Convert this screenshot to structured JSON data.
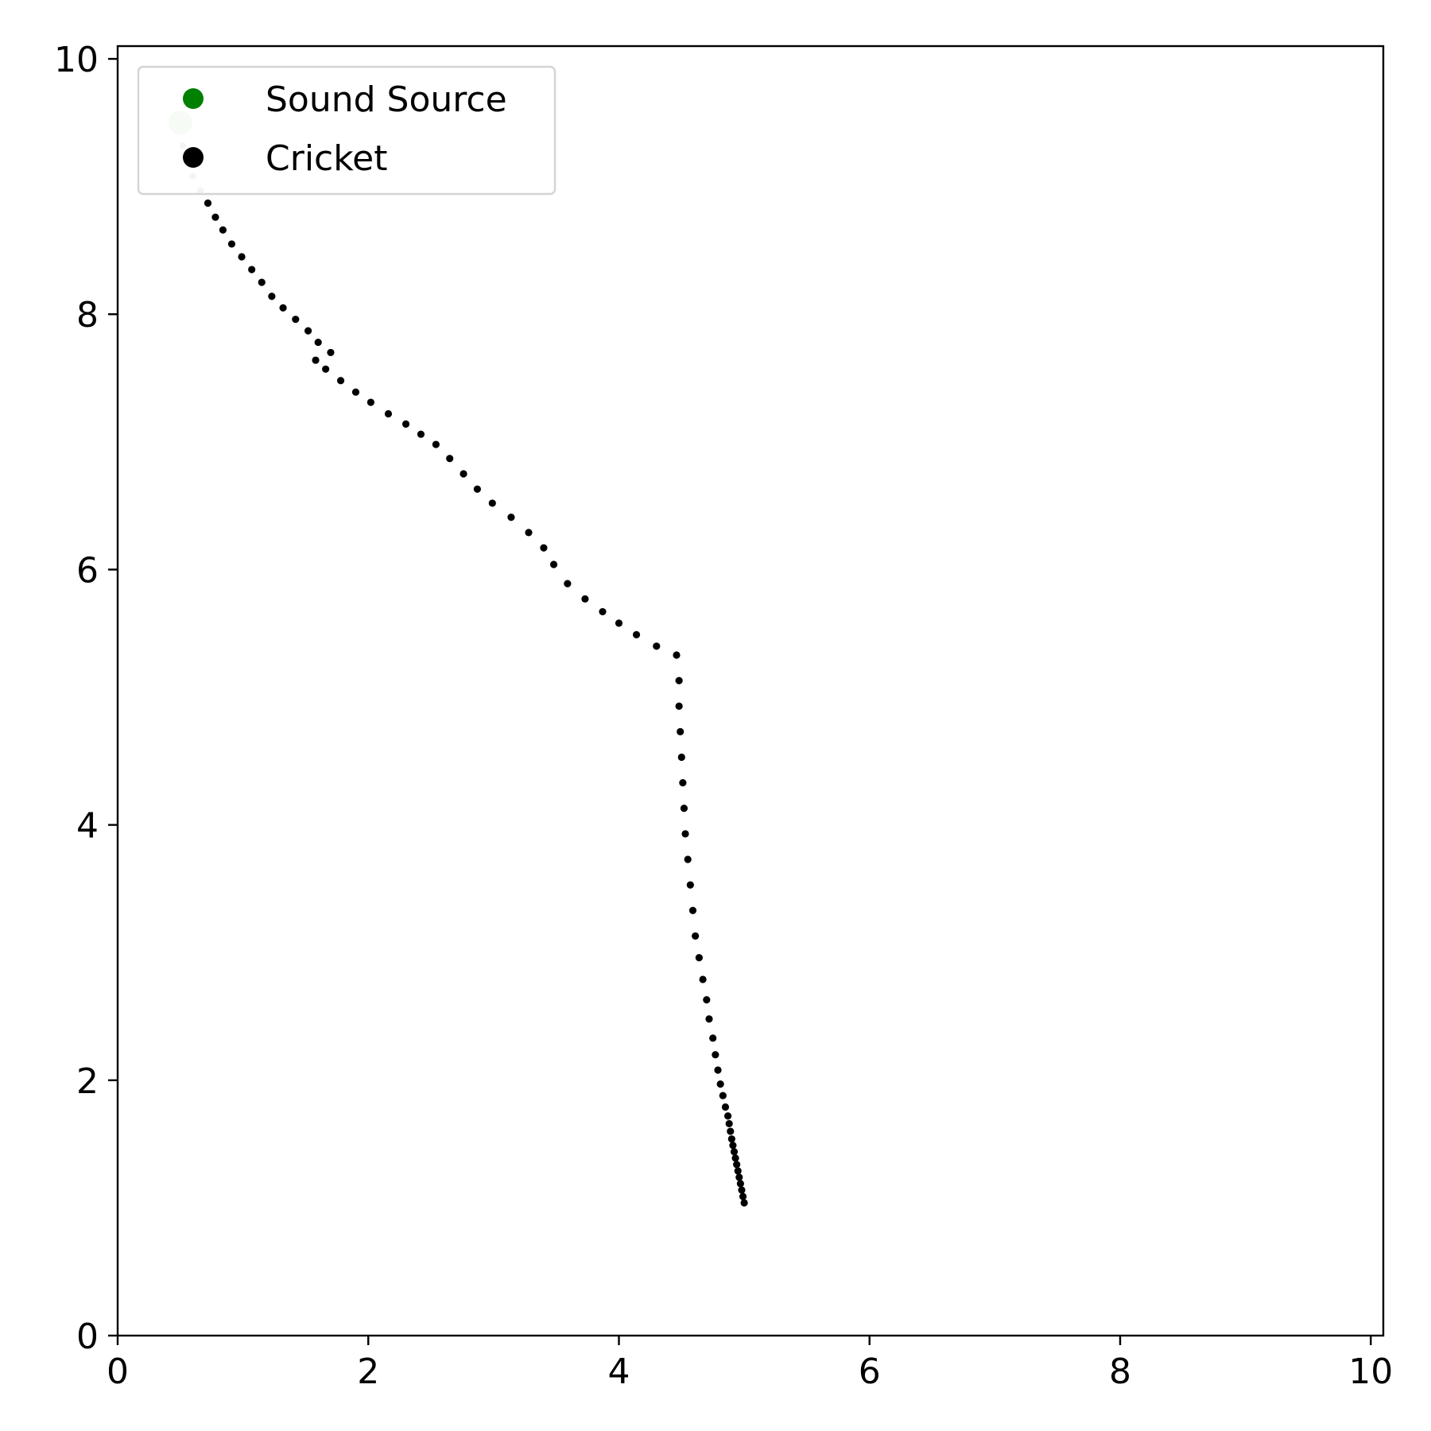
{
  "chart_data": {
    "type": "scatter",
    "title": "",
    "xlabel": "",
    "ylabel": "",
    "xlim": [
      0,
      10.1
    ],
    "ylim": [
      0,
      10.1
    ],
    "x_ticks": [
      {
        "value": 0,
        "label": "0"
      },
      {
        "value": 2,
        "label": "2"
      },
      {
        "value": 4,
        "label": "4"
      },
      {
        "value": 6,
        "label": "6"
      },
      {
        "value": 8,
        "label": "8"
      },
      {
        "value": 10,
        "label": "10"
      }
    ],
    "y_ticks": [
      {
        "value": 0,
        "label": "0"
      },
      {
        "value": 2,
        "label": "2"
      },
      {
        "value": 4,
        "label": "4"
      },
      {
        "value": 6,
        "label": "6"
      },
      {
        "value": 8,
        "label": "8"
      },
      {
        "value": 10,
        "label": "10"
      }
    ],
    "grid": false,
    "legend_position": "upper-left",
    "series": [
      {
        "name": "Sound Source",
        "color": "#008000",
        "marker_alpha": 0.18,
        "points": [
          [
            0.5,
            9.5
          ]
        ]
      },
      {
        "name": "Cricket",
        "color": "#000000",
        "faded_color": "#c8c8c8",
        "faded_count": 3,
        "points": [
          [
            0.52,
            9.32
          ],
          [
            0.6,
            9.08
          ],
          [
            0.66,
            8.97
          ],
          [
            0.72,
            8.87
          ],
          [
            0.78,
            8.76
          ],
          [
            0.84,
            8.66
          ],
          [
            0.91,
            8.55
          ],
          [
            0.99,
            8.45
          ],
          [
            1.07,
            8.35
          ],
          [
            1.15,
            8.25
          ],
          [
            1.23,
            8.14
          ],
          [
            1.32,
            8.05
          ],
          [
            1.42,
            7.96
          ],
          [
            1.52,
            7.87
          ],
          [
            1.6,
            7.78
          ],
          [
            1.7,
            7.7
          ],
          [
            1.58,
            7.64
          ],
          [
            1.66,
            7.57
          ],
          [
            1.78,
            7.48
          ],
          [
            1.9,
            7.39
          ],
          [
            2.02,
            7.31
          ],
          [
            2.16,
            7.22
          ],
          [
            2.3,
            7.14
          ],
          [
            2.42,
            7.06
          ],
          [
            2.54,
            6.98
          ],
          [
            2.65,
            6.87
          ],
          [
            2.76,
            6.75
          ],
          [
            2.87,
            6.63
          ],
          [
            2.99,
            6.52
          ],
          [
            3.14,
            6.41
          ],
          [
            3.28,
            6.29
          ],
          [
            3.4,
            6.17
          ],
          [
            3.48,
            6.04
          ],
          [
            3.59,
            5.89
          ],
          [
            3.73,
            5.77
          ],
          [
            3.87,
            5.67
          ],
          [
            4.0,
            5.58
          ],
          [
            4.14,
            5.49
          ],
          [
            4.3,
            5.4
          ],
          [
            4.46,
            5.33
          ],
          [
            4.48,
            5.13
          ],
          [
            4.48,
            4.93
          ],
          [
            4.49,
            4.73
          ],
          [
            4.5,
            4.53
          ],
          [
            4.51,
            4.33
          ],
          [
            4.52,
            4.13
          ],
          [
            4.53,
            3.93
          ],
          [
            4.55,
            3.73
          ],
          [
            4.57,
            3.53
          ],
          [
            4.59,
            3.33
          ],
          [
            4.61,
            3.13
          ],
          [
            4.64,
            2.96
          ],
          [
            4.67,
            2.79
          ],
          [
            4.7,
            2.63
          ],
          [
            4.72,
            2.48
          ],
          [
            4.75,
            2.33
          ],
          [
            4.77,
            2.2
          ],
          [
            4.79,
            2.08
          ],
          [
            4.81,
            1.97
          ],
          [
            4.83,
            1.88
          ],
          [
            4.85,
            1.79
          ],
          [
            4.87,
            1.72
          ],
          [
            4.88,
            1.66
          ],
          [
            4.89,
            1.6
          ],
          [
            4.9,
            1.54
          ],
          [
            4.91,
            1.49
          ],
          [
            4.92,
            1.44
          ],
          [
            4.93,
            1.39
          ],
          [
            4.94,
            1.34
          ],
          [
            4.95,
            1.29
          ],
          [
            4.96,
            1.24
          ],
          [
            4.97,
            1.19
          ],
          [
            4.98,
            1.14
          ],
          [
            4.99,
            1.09
          ],
          [
            5.0,
            1.04
          ]
        ]
      }
    ]
  }
}
